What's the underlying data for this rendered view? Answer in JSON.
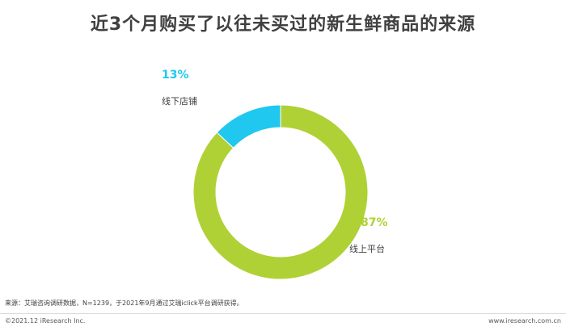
{
  "title": "近3个月购买了以往未买过的新生鲜商品的来源",
  "colors": {
    "online": "#b0d136",
    "offline": "#20c8ef",
    "title": "#404040"
  },
  "chart_data": {
    "type": "pie",
    "donut": true,
    "start_angle_deg": 0,
    "direction": "counterclockwise",
    "series": [
      {
        "name": "线上平台",
        "value": 87,
        "label": "87%",
        "color": "#b0d136"
      },
      {
        "name": "线下店铺",
        "value": 13,
        "label": "13%",
        "color": "#20c8ef"
      }
    ],
    "legend": "none"
  },
  "labels": {
    "online_pct": "87%",
    "online_cat": "线上平台",
    "offline_pct": "13%",
    "offline_cat": "线下店铺"
  },
  "source": "来源：艾瑞咨询调研数据，N=1239，于2021年9月通过艾瑞iclick平台调研获得。",
  "footer": {
    "copyright": "©2021.12 iResearch Inc.",
    "website": "www.iresearch.com.cn"
  }
}
